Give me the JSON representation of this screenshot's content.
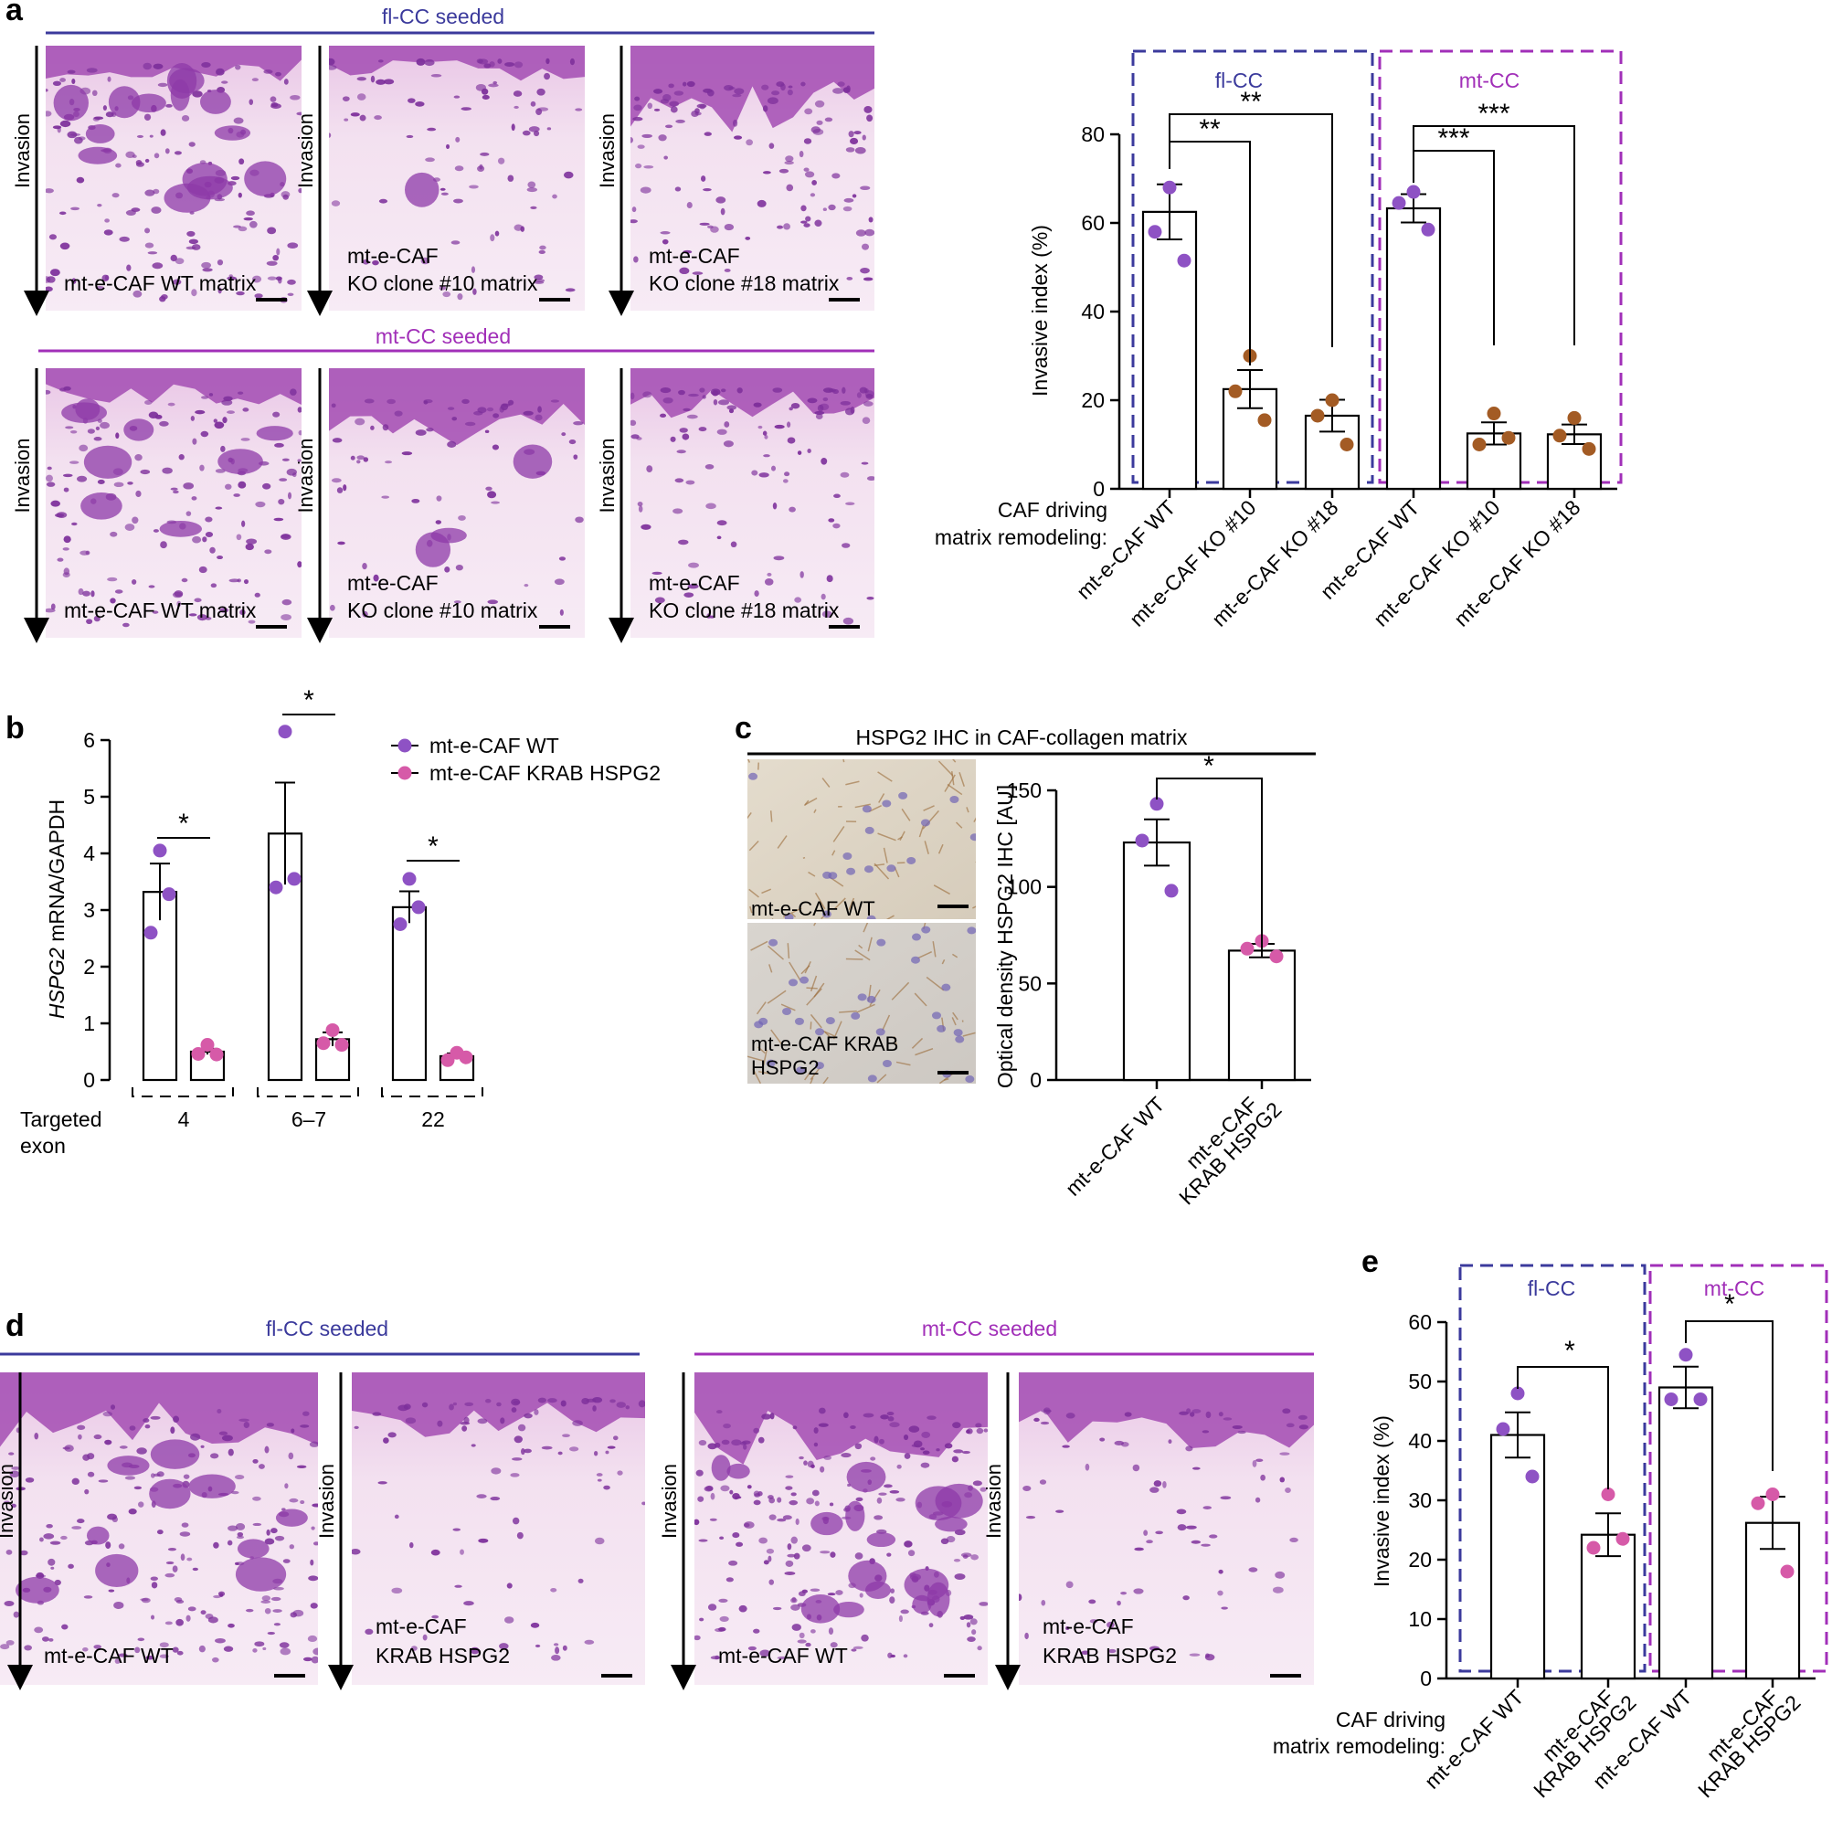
{
  "panel_letters": {
    "a": "a",
    "b": "b",
    "c": "c",
    "d": "d",
    "e": "e"
  },
  "colors": {
    "flcc_blue": "#3b3a9c",
    "mtcc_magenta": "#a12fb8",
    "wt_purple": "#8e52c4",
    "ko_brown": "#a35b24",
    "krab_pink": "#d65aa8",
    "he_pink": "#f1dcef",
    "he_purple": "#8a3aa5",
    "ihc_beige": "#ddd3c2",
    "ihc_brown": "#9b6c3a"
  },
  "panel_a": {
    "top_header": "fl-CC seeded",
    "bottom_header": "mt-CC seeded",
    "invasion_label": "Invasion",
    "images": [
      {
        "line1": "mt-e-CAF WT matrix",
        "line2": ""
      },
      {
        "line1": "mt-e-CAF",
        "line2": "KO clone #10 matrix"
      },
      {
        "line1": "mt-e-CAF",
        "line2": "KO clone #18 matrix"
      },
      {
        "line1": "mt-e-CAF WT matrix",
        "line2": ""
      },
      {
        "line1": "mt-e-CAF",
        "line2": "KO clone #10 matrix"
      },
      {
        "line1": "mt-e-CAF",
        "line2": "KO clone #18 matrix"
      }
    ]
  },
  "panel_b": {
    "legend": [
      "mt-e-CAF WT",
      "mt-e-CAF KRAB HSPG2"
    ],
    "ylabel_italic": "HSPG2",
    "ylabel_rest": " mRNA/GAPDH",
    "x_title_1": "Targeted",
    "x_title_2": "exon",
    "sig": [
      "*",
      "*",
      "*"
    ]
  },
  "panel_c": {
    "header": "HSPG2 IHC in CAF-collagen matrix",
    "image_top_label": "mt-e-CAF WT",
    "image_bottom_label_1": "mt-e-CAF KRAB",
    "image_bottom_label_2": "HSPG2",
    "ylabel": "Optical density HSPG2 IHC [AU]",
    "xtick_1": "mt-e-CAF WT",
    "xtick_2a": "mt-e-CAF",
    "xtick_2b": "KRAB HSPG2",
    "sig": "*"
  },
  "panel_d": {
    "header_left": "fl-CC seeded",
    "header_right": "mt-CC seeded",
    "invasion_label": "Invasion",
    "images": [
      {
        "line1": "mt-e-CAF WT",
        "line2": ""
      },
      {
        "line1": "mt-e-CAF",
        "line2": "KRAB HSPG2"
      },
      {
        "line1": "mt-e-CAF WT",
        "line2": ""
      },
      {
        "line1": "mt-e-CAF",
        "line2": "KRAB HSPG2"
      }
    ]
  },
  "panel_a_chart_text": {
    "box_left": "fl-CC",
    "box_right": "mt-CC",
    "ylabel": "Invasive index (%)",
    "x_title_1": "CAF driving",
    "x_title_2": "matrix remodeling:",
    "sig": [
      "**",
      "**",
      "***",
      "***"
    ]
  },
  "panel_e_chart_text": {
    "box_left": "fl-CC",
    "box_right": "mt-CC",
    "ylabel": "Invasive index (%)",
    "x_title_1": "CAF driving",
    "x_title_2": "matrix remodeling:",
    "sig": [
      "*",
      "*"
    ],
    "xticks": [
      [
        "mt-e-CAF WT"
      ],
      [
        "mt-e-CAF",
        "KRAB HSPG2"
      ],
      [
        "mt-e-CAF WT"
      ],
      [
        "mt-e-CAF",
        "KRAB HSPG2"
      ]
    ]
  },
  "chart_data": [
    {
      "type": "bar",
      "panel": "a",
      "ylabel": "Invasive index (%)",
      "ylim": [
        0,
        80
      ],
      "yticks": [
        0,
        20,
        40,
        60,
        80
      ],
      "categories": [
        "mt-e-CAF WT",
        "mt-e-CAF KO #10",
        "mt-e-CAF KO #18",
        "mt-e-CAF WT",
        "mt-e-CAF KO #10",
        "mt-e-CAF KO #18"
      ],
      "groups": [
        "fl-CC",
        "fl-CC",
        "fl-CC",
        "mt-CC",
        "mt-CC",
        "mt-CC"
      ],
      "values": [
        62.5,
        22.5,
        16.5,
        63.3,
        12.5,
        12.3
      ],
      "errors": [
        6.2,
        4.3,
        3.6,
        3.2,
        2.5,
        2.2
      ],
      "points": [
        [
          68,
          58,
          51.5
        ],
        [
          30,
          22,
          15.5
        ],
        [
          20,
          16.5,
          10
        ],
        [
          67,
          64.5,
          58.5
        ],
        [
          17,
          10,
          11.5
        ],
        [
          16,
          12,
          9
        ]
      ],
      "point_colors": [
        "wt",
        "ko",
        "ko",
        "wt",
        "ko",
        "ko"
      ],
      "significance": [
        {
          "from": 0,
          "to": 1,
          "label": "**"
        },
        {
          "from": 0,
          "to": 2,
          "label": "**"
        },
        {
          "from": 3,
          "to": 4,
          "label": "***"
        },
        {
          "from": 3,
          "to": 5,
          "label": "***"
        }
      ]
    },
    {
      "type": "bar",
      "panel": "b",
      "ylim": [
        0,
        6
      ],
      "yticks": [
        0,
        1,
        2,
        3,
        4,
        5,
        6
      ],
      "categories": [
        "4",
        "6–7",
        "22"
      ],
      "series": [
        {
          "name": "mt-e-CAF WT",
          "values": [
            3.32,
            4.35,
            3.05
          ],
          "errors": [
            0.5,
            0.9,
            0.28
          ],
          "points": [
            [
              4.05,
              2.6,
              3.28
            ],
            [
              6.15,
              3.4,
              3.55
            ],
            [
              3.55,
              2.75,
              3.05
            ]
          ]
        },
        {
          "name": "mt-e-CAF KRAB HSPG2",
          "values": [
            0.5,
            0.72,
            0.42
          ],
          "errors": [
            0.05,
            0.12,
            0.05
          ],
          "points": [
            [
              0.62,
              0.46,
              0.45
            ],
            [
              0.88,
              0.65,
              0.62
            ],
            [
              0.48,
              0.35,
              0.4
            ]
          ]
        }
      ]
    },
    {
      "type": "bar",
      "panel": "c",
      "ylabel": "Optical density HSPG2 IHC [AU]",
      "ylim": [
        0,
        150
      ],
      "yticks": [
        0,
        50,
        100,
        150
      ],
      "categories": [
        "mt-e-CAF WT",
        "mt-e-CAF KRAB HSPG2"
      ],
      "values": [
        123,
        67
      ],
      "errors": [
        12,
        3.5
      ],
      "points": [
        [
          143,
          124,
          98
        ],
        [
          72,
          68,
          64
        ]
      ],
      "point_colors": [
        "wt",
        "krab"
      ]
    },
    {
      "type": "bar",
      "panel": "e",
      "ylabel": "Invasive index (%)",
      "ylim": [
        0,
        60
      ],
      "yticks": [
        0,
        10,
        20,
        30,
        40,
        50,
        60
      ],
      "categories": [
        "mt-e-CAF WT",
        "mt-e-CAF KRAB HSPG2",
        "mt-e-CAF WT",
        "mt-e-CAF KRAB HSPG2"
      ],
      "groups": [
        "fl-CC",
        "fl-CC",
        "mt-CC",
        "mt-CC"
      ],
      "values": [
        41,
        24.2,
        49,
        26.2
      ],
      "errors": [
        3.8,
        3.6,
        3.5,
        4.4
      ],
      "points": [
        [
          48,
          42,
          34
        ],
        [
          31,
          22,
          23.5
        ],
        [
          54.5,
          47,
          47
        ],
        [
          31,
          29.5,
          18
        ]
      ],
      "point_colors": [
        "wt",
        "krab",
        "wt",
        "krab"
      ],
      "significance": [
        {
          "from": 0,
          "to": 1,
          "label": "*"
        },
        {
          "from": 2,
          "to": 3,
          "label": "*"
        }
      ]
    }
  ]
}
